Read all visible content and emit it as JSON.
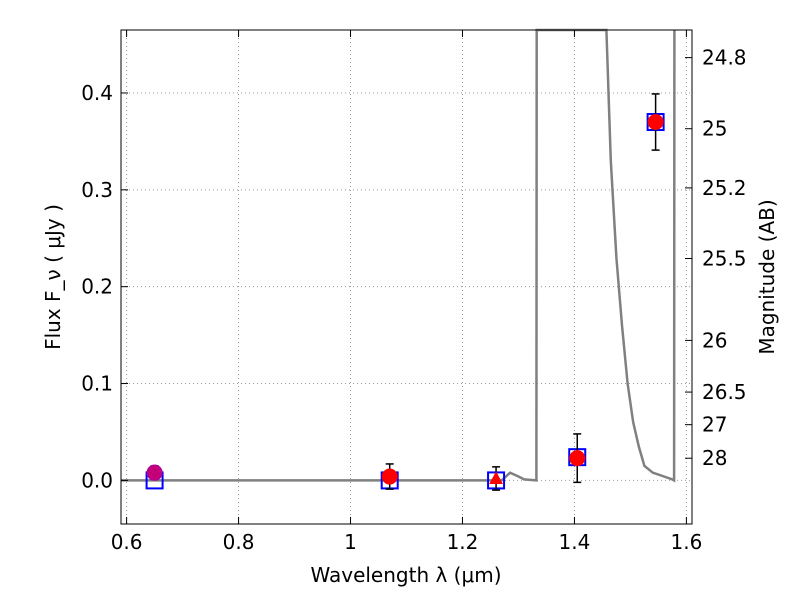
{
  "chart_data": {
    "type": "scatter",
    "xlabel": "Wavelength  λ (μm)",
    "ylabel": "Flux  F_ν  ( μJy )",
    "ylabel_right": "Magnitude (AB)",
    "xlim": [
      0.59,
      1.61
    ],
    "ylim": [
      -0.045,
      0.465
    ],
    "x_ticks": [
      {
        "value": 0.6,
        "label": "0.6"
      },
      {
        "value": 0.8,
        "label": "0.8"
      },
      {
        "value": 1.0,
        "label": "1"
      },
      {
        "value": 1.2,
        "label": "1.2"
      },
      {
        "value": 1.4,
        "label": "1.4"
      },
      {
        "value": 1.6,
        "label": "1.6"
      }
    ],
    "y_ticks": [
      {
        "value": 0.0,
        "label": "0.0"
      },
      {
        "value": 0.1,
        "label": "0.1"
      },
      {
        "value": 0.2,
        "label": "0.2"
      },
      {
        "value": 0.3,
        "label": "0.3"
      },
      {
        "value": 0.4,
        "label": "0.4"
      }
    ],
    "right_ticks": [
      {
        "value": 24.8,
        "label": "24.8"
      },
      {
        "value": 25.0,
        "label": "25"
      },
      {
        "value": 25.2,
        "label": "25.2"
      },
      {
        "value": 25.5,
        "label": "25.5"
      },
      {
        "value": 26.0,
        "label": "26"
      },
      {
        "value": 26.5,
        "label": "26.5"
      },
      {
        "value": 27.0,
        "label": "27"
      },
      {
        "value": 28.0,
        "label": "28"
      }
    ],
    "grid": true,
    "observed": {
      "x": [
        0.65,
        1.07,
        1.26,
        1.405,
        1.545
      ],
      "y": [
        0.008,
        0.004,
        0.002,
        0.023,
        0.37
      ],
      "yerr": [
        0.007,
        0.013,
        0.012,
        0.025,
        0.029
      ],
      "color": "#ff0000"
    },
    "upper_limit_marker": {
      "x": 0.65,
      "color": "#aa00aa"
    },
    "model": {
      "x": [
        0.65,
        1.07,
        1.26,
        1.405,
        1.545
      ],
      "y": [
        0.0,
        0.0,
        0.0,
        0.024,
        0.37
      ],
      "color": "#0000ff"
    },
    "sed": {
      "color": "#808080",
      "points": [
        [
          0.59,
          0.0
        ],
        [
          1.27,
          0.0
        ],
        [
          1.285,
          0.008
        ],
        [
          1.3,
          0.004
        ],
        [
          1.31,
          0.001
        ],
        [
          1.332,
          0.0
        ],
        [
          1.3325,
          0.465
        ],
        [
          1.457,
          0.465
        ],
        [
          1.465,
          0.33
        ],
        [
          1.475,
          0.23
        ],
        [
          1.485,
          0.16
        ],
        [
          1.495,
          0.1
        ],
        [
          1.505,
          0.06
        ],
        [
          1.515,
          0.035
        ],
        [
          1.525,
          0.015
        ],
        [
          1.54,
          0.008
        ],
        [
          1.56,
          0.004
        ],
        [
          1.575,
          0.001
        ],
        [
          1.578,
          0.0
        ],
        [
          1.5785,
          0.465
        ]
      ]
    },
    "colors": {
      "axis": "#000000",
      "grid": "#999999",
      "sed": "#808080"
    }
  }
}
